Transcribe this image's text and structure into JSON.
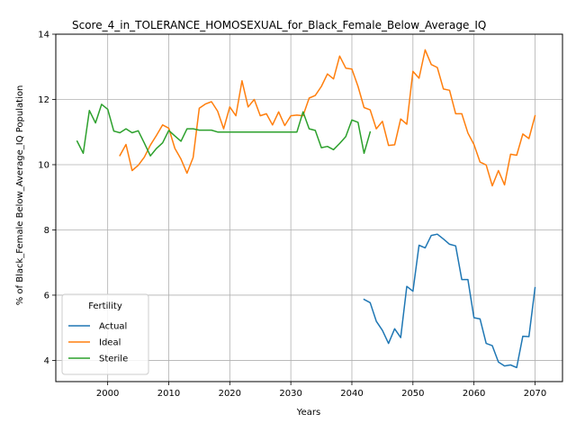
{
  "chart_data": {
    "type": "line",
    "title": "Score_4_in_TOLERANCE_HOMOSEXUAL_for_Black_Female_Below_Average_IQ",
    "xlabel": "Years",
    "ylabel": "% of Black_Female Below_Average_IQ Population",
    "xlim": [
      1991.5,
      2074.5
    ],
    "ylim": [
      3.35,
      14.0
    ],
    "x_ticks": [
      2000,
      2010,
      2020,
      2030,
      2040,
      2050,
      2060,
      2070
    ],
    "y_ticks": [
      4,
      6,
      8,
      10,
      12,
      14
    ],
    "grid": true,
    "legend": {
      "title": "Fertility",
      "placement": "lower-left"
    },
    "series": [
      {
        "name": "Actual",
        "color": "#1f77b4",
        "x": [
          2042,
          2043,
          2044,
          2045,
          2046,
          2047,
          2048,
          2049,
          2050,
          2051,
          2052,
          2053,
          2054,
          2055,
          2056,
          2057,
          2058,
          2059,
          2060,
          2061,
          2062,
          2063,
          2064,
          2065,
          2066,
          2067,
          2068,
          2069,
          2070
        ],
        "y": [
          5.87,
          5.77,
          5.2,
          4.92,
          4.52,
          4.97,
          4.7,
          6.27,
          6.12,
          7.53,
          7.45,
          7.83,
          7.87,
          7.72,
          7.56,
          7.51,
          6.48,
          6.48,
          5.31,
          5.27,
          4.52,
          4.45,
          3.95,
          3.83,
          3.86,
          3.78,
          4.74,
          4.73,
          6.23
        ]
      },
      {
        "name": "Ideal",
        "color": "#ff7f0e",
        "x": [
          2002,
          2003,
          2004,
          2005,
          2006,
          2007,
          2008,
          2009,
          2010,
          2011,
          2012,
          2013,
          2014,
          2015,
          2016,
          2017,
          2018,
          2019,
          2020,
          2021,
          2022,
          2023,
          2024,
          2025,
          2026,
          2027,
          2028,
          2029,
          2030,
          2031,
          2032,
          2033,
          2034,
          2035,
          2036,
          2037,
          2038,
          2039,
          2040,
          2041,
          2042,
          2043,
          2044,
          2045,
          2046,
          2047,
          2048,
          2049,
          2050,
          2051,
          2052,
          2053,
          2054,
          2055,
          2056,
          2057,
          2058,
          2059,
          2060,
          2061,
          2062,
          2063,
          2064,
          2065,
          2066,
          2067,
          2068,
          2069,
          2070
        ],
        "y": [
          10.28,
          10.62,
          9.82,
          9.98,
          10.23,
          10.6,
          10.9,
          11.22,
          11.12,
          10.5,
          10.17,
          9.74,
          10.22,
          11.73,
          11.86,
          11.93,
          11.64,
          11.1,
          11.77,
          11.5,
          12.57,
          11.77,
          12.0,
          11.5,
          11.56,
          11.22,
          11.62,
          11.2,
          11.5,
          11.52,
          11.5,
          12.04,
          12.12,
          12.4,
          12.78,
          12.63,
          13.33,
          12.96,
          12.93,
          12.4,
          11.75,
          11.68,
          11.1,
          11.33,
          10.59,
          10.61,
          11.4,
          11.24,
          12.86,
          12.65,
          13.52,
          13.07,
          12.98,
          12.32,
          12.28,
          11.56,
          11.56,
          10.97,
          10.62,
          10.08,
          9.99,
          9.35,
          9.82,
          9.38,
          10.32,
          10.29,
          10.94,
          10.8,
          11.5
        ]
      },
      {
        "name": "Sterile",
        "color": "#2ca02c",
        "x": [
          1995,
          1996,
          1997,
          1998,
          1999,
          2000,
          2001,
          2002,
          2003,
          2004,
          2005,
          2006,
          2007,
          2008,
          2009,
          2010,
          2011,
          2012,
          2013,
          2014,
          2015,
          2016,
          2017,
          2018,
          2019,
          2020,
          2021,
          2022,
          2023,
          2024,
          2025,
          2026,
          2027,
          2028,
          2029,
          2030,
          2031,
          2032,
          2033,
          2034,
          2035,
          2036,
          2037,
          2038,
          2039,
          2040,
          2041,
          2042,
          2043
        ],
        "y": [
          10.72,
          10.35,
          11.66,
          11.28,
          11.85,
          11.7,
          11.03,
          10.98,
          11.1,
          10.98,
          11.04,
          10.66,
          10.27,
          10.5,
          10.67,
          11.05,
          10.88,
          10.72,
          11.1,
          11.1,
          11.06,
          11.06,
          11.06,
          11.0,
          11.0,
          11.0,
          11.0,
          11.0,
          11.0,
          11.0,
          11.0,
          11.0,
          11.0,
          11.0,
          11.0,
          11.0,
          11.0,
          11.62,
          11.1,
          11.05,
          10.52,
          10.56,
          10.46,
          10.65,
          10.86,
          11.37,
          11.3,
          10.35,
          11.0
        ]
      }
    ]
  }
}
